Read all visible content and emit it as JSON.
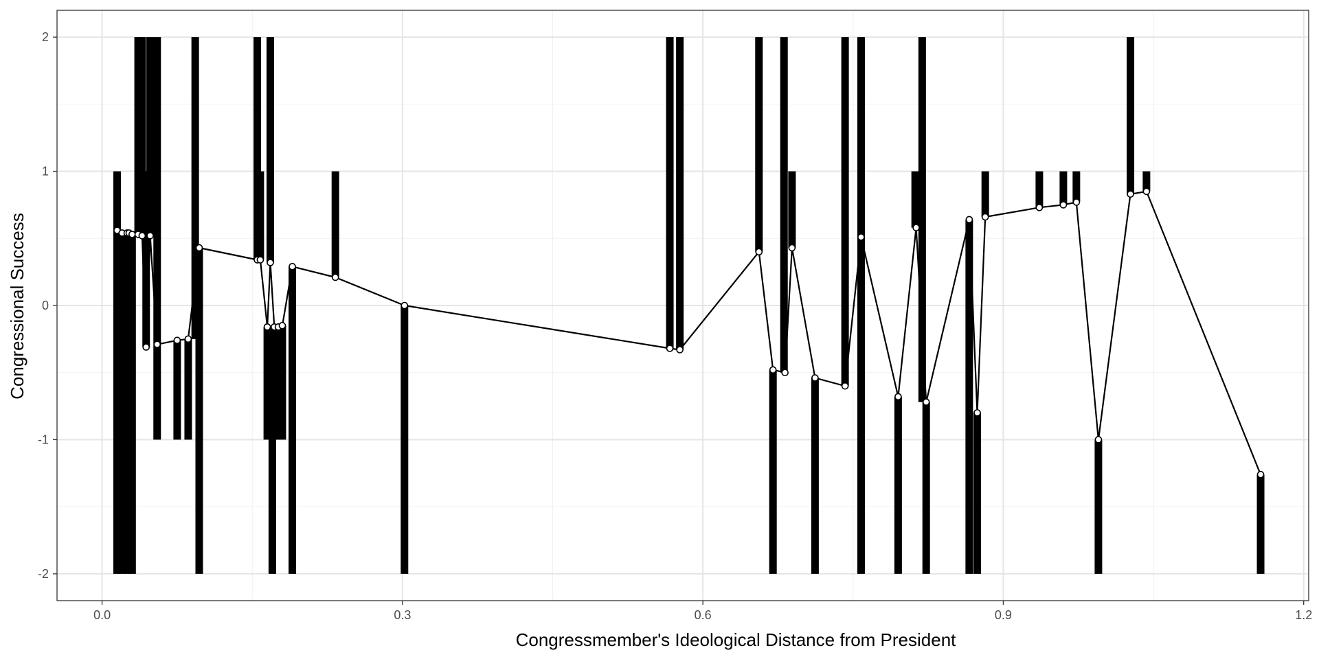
{
  "chart_data": {
    "type": "line",
    "title": "",
    "xlabel": "Congressmember's Ideological Distance from President",
    "ylabel": "Congressional Success",
    "xlim": [
      -0.045,
      1.205
    ],
    "ylim": [
      -2.2,
      2.2
    ],
    "x_ticks": [
      0.0,
      0.3,
      0.6,
      0.9,
      1.2
    ],
    "x_tick_labels": [
      "0.0",
      "0.3",
      "0.6",
      "0.9",
      "1.2"
    ],
    "y_ticks": [
      -2,
      -1,
      0,
      1,
      2
    ],
    "y_tick_labels": [
      "-2",
      "-1",
      "0",
      "1",
      "2"
    ],
    "grid": true,
    "legend": "none",
    "series": [
      {
        "kind": "line-with-points",
        "x": [
          0.015,
          0.02,
          0.025,
          0.027,
          0.03,
          0.036,
          0.04,
          0.044,
          0.048,
          0.055,
          0.075,
          0.086,
          0.097,
          0.155,
          0.158,
          0.165,
          0.168,
          0.172,
          0.176,
          0.18,
          0.19,
          0.233,
          0.302,
          0.567,
          0.577,
          0.656,
          0.67,
          0.682,
          0.689,
          0.712,
          0.742,
          0.758,
          0.795,
          0.813,
          0.823,
          0.866,
          0.874,
          0.882,
          0.936,
          0.96,
          0.973,
          0.995,
          1.027,
          1.043,
          1.157
        ],
        "y": [
          0.56,
          0.54,
          0.54,
          0.54,
          0.53,
          0.53,
          0.52,
          -0.31,
          0.52,
          -0.29,
          -0.26,
          -0.25,
          0.43,
          0.34,
          0.34,
          -0.16,
          0.32,
          -0.16,
          -0.16,
          -0.15,
          0.29,
          0.21,
          0.0,
          -0.32,
          -0.33,
          0.4,
          -0.48,
          -0.5,
          0.43,
          -0.54,
          -0.6,
          0.51,
          -0.68,
          0.58,
          -0.72,
          0.64,
          -0.8,
          0.66,
          0.73,
          0.75,
          0.77,
          -1.0,
          0.83,
          0.85,
          -1.26
        ]
      }
    ],
    "bars": [
      {
        "x": 0.015,
        "y0": 0.56,
        "y1": 1.0
      },
      {
        "x": 0.015,
        "y0": -2.0,
        "y1": 0.56
      },
      {
        "x": 0.02,
        "y0": -2.0,
        "y1": 0.54
      },
      {
        "x": 0.025,
        "y0": -2.0,
        "y1": 0.54
      },
      {
        "x": 0.03,
        "y0": -2.0,
        "y1": 0.53
      },
      {
        "x": 0.036,
        "y0": 0.53,
        "y1": 2.0
      },
      {
        "x": 0.04,
        "y0": 0.52,
        "y1": 2.0
      },
      {
        "x": 0.044,
        "y0": -0.31,
        "y1": 1.0
      },
      {
        "x": 0.048,
        "y0": 0.52,
        "y1": 2.0
      },
      {
        "x": 0.055,
        "y0": -1.0,
        "y1": 2.0
      },
      {
        "x": 0.075,
        "y0": -1.0,
        "y1": -0.26
      },
      {
        "x": 0.086,
        "y0": -1.0,
        "y1": -0.25
      },
      {
        "x": 0.093,
        "y0": -0.25,
        "y1": 2.0
      },
      {
        "x": 0.097,
        "y0": -2.0,
        "y1": 0.43
      },
      {
        "x": 0.155,
        "y0": 0.34,
        "y1": 2.0
      },
      {
        "x": 0.158,
        "y0": 0.34,
        "y1": 1.0
      },
      {
        "x": 0.165,
        "y0": -1.0,
        "y1": -0.16
      },
      {
        "x": 0.168,
        "y0": 0.32,
        "y1": 2.0
      },
      {
        "x": 0.17,
        "y0": -2.0,
        "y1": -0.16
      },
      {
        "x": 0.174,
        "y0": -1.0,
        "y1": -0.16
      },
      {
        "x": 0.18,
        "y0": -1.0,
        "y1": -0.15
      },
      {
        "x": 0.19,
        "y0": -2.0,
        "y1": 0.29
      },
      {
        "x": 0.233,
        "y0": 0.21,
        "y1": 1.0
      },
      {
        "x": 0.302,
        "y0": -2.0,
        "y1": 0.0
      },
      {
        "x": 0.567,
        "y0": -0.32,
        "y1": 2.0
      },
      {
        "x": 0.577,
        "y0": -0.33,
        "y1": 2.0
      },
      {
        "x": 0.656,
        "y0": 0.4,
        "y1": 2.0
      },
      {
        "x": 0.67,
        "y0": -2.0,
        "y1": -0.48
      },
      {
        "x": 0.681,
        "y0": -0.5,
        "y1": 2.0
      },
      {
        "x": 0.689,
        "y0": 0.43,
        "y1": 1.0
      },
      {
        "x": 0.712,
        "y0": -2.0,
        "y1": -0.54
      },
      {
        "x": 0.742,
        "y0": -0.6,
        "y1": 2.0
      },
      {
        "x": 0.758,
        "y0": -2.0,
        "y1": 2.0
      },
      {
        "x": 0.795,
        "y0": -2.0,
        "y1": -0.68
      },
      {
        "x": 0.812,
        "y0": 0.58,
        "y1": 1.0
      },
      {
        "x": 0.819,
        "y0": -0.72,
        "y1": 2.0
      },
      {
        "x": 0.823,
        "y0": -2.0,
        "y1": -0.72
      },
      {
        "x": 0.866,
        "y0": -2.0,
        "y1": 0.64
      },
      {
        "x": 0.874,
        "y0": -2.0,
        "y1": -0.8
      },
      {
        "x": 0.882,
        "y0": 0.66,
        "y1": 1.0
      },
      {
        "x": 0.936,
        "y0": 0.73,
        "y1": 1.0
      },
      {
        "x": 0.96,
        "y0": 0.75,
        "y1": 1.0
      },
      {
        "x": 0.973,
        "y0": 0.77,
        "y1": 1.0
      },
      {
        "x": 0.995,
        "y0": -2.0,
        "y1": -1.0
      },
      {
        "x": 1.027,
        "y0": 0.83,
        "y1": 2.0
      },
      {
        "x": 1.043,
        "y0": 0.85,
        "y1": 1.0
      },
      {
        "x": 1.157,
        "y0": -2.0,
        "y1": -1.26
      }
    ],
    "colors": {
      "line": "#000000",
      "bars": "#000000",
      "point_fill": "#ffffff",
      "grid_major": "#e5e5e5",
      "grid_minor": "#f0f0f0",
      "panel_border": "#333333"
    }
  }
}
